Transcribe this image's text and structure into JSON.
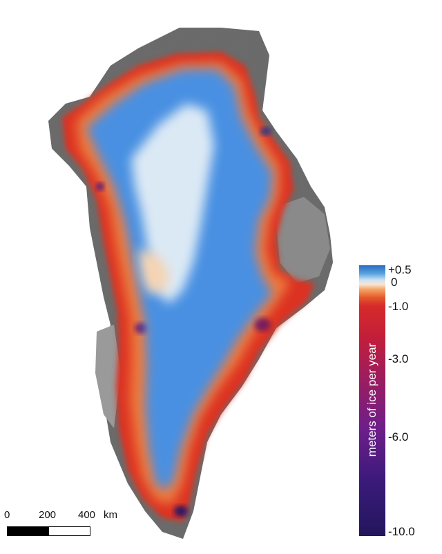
{
  "legend": {
    "title": "meters of ice per year",
    "ticks": [
      "+0.5",
      "0",
      "-1.0",
      "-3.0",
      "-6.0",
      "-10.0"
    ]
  },
  "scale_bar": {
    "labels": [
      "0",
      "200",
      "400",
      "km"
    ]
  },
  "colors": {
    "ocean": "#ffffff",
    "bedrock": "#555555",
    "ice_gain": "#4a90e2",
    "ice_neutral": "#f3efe9",
    "ice_loss_light": "#f08a45",
    "ice_loss": "#d62a2a",
    "ice_loss_heavy": "#2a1866"
  }
}
